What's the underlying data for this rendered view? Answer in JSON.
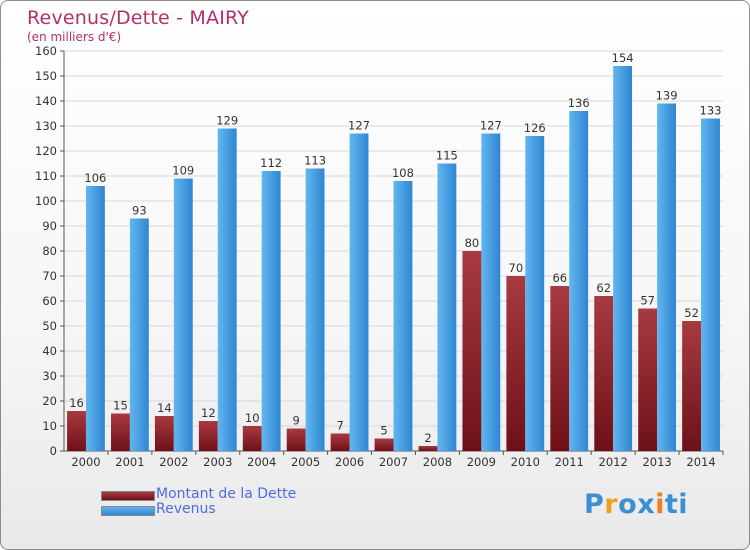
{
  "header": {
    "title": "Revenus/Dette - MAIRY",
    "subtitle": "(en milliers d'€)"
  },
  "legend": {
    "items": [
      {
        "label": "Montant de la Dette",
        "color": "#6e1018"
      },
      {
        "label": "Revenus",
        "color": "#3b97de"
      }
    ]
  },
  "logo": {
    "letters": [
      "P",
      "r",
      "o",
      "x",
      "i",
      "t",
      "i"
    ],
    "colors": [
      "#3c8fd0",
      "#f0a020",
      "#3c8fd0",
      "#3c8fd0",
      "#f08020",
      "#3c8fd0",
      "#3c8fd0"
    ]
  },
  "colors": {
    "dette": "#6e1018",
    "dette_light": "#a83a40",
    "revenus": "#2f86d2",
    "revenus_light": "#62b6ee",
    "axis_text": "#333333",
    "grid": "#d8d8d8"
  },
  "chart_data": {
    "type": "bar",
    "categories": [
      "2000",
      "2001",
      "2002",
      "2003",
      "2004",
      "2005",
      "2006",
      "2007",
      "2008",
      "2009",
      "2010",
      "2011",
      "2012",
      "2013",
      "2014"
    ],
    "series": [
      {
        "name": "Montant de la Dette",
        "values": [
          16,
          15,
          14,
          12,
          10,
          9,
          7,
          5,
          2,
          80,
          70,
          66,
          62,
          57,
          52
        ]
      },
      {
        "name": "Revenus",
        "values": [
          106,
          93,
          109,
          129,
          112,
          113,
          127,
          108,
          115,
          127,
          126,
          136,
          154,
          139,
          133
        ]
      }
    ],
    "ylim": [
      0,
      160
    ],
    "yticks": [
      0,
      10,
      20,
      30,
      40,
      50,
      60,
      70,
      80,
      90,
      100,
      110,
      120,
      130,
      140,
      150,
      160
    ],
    "grid": true,
    "title": "Revenus/Dette - MAIRY",
    "ylabel": "(en milliers d'€)",
    "xlabel": ""
  }
}
